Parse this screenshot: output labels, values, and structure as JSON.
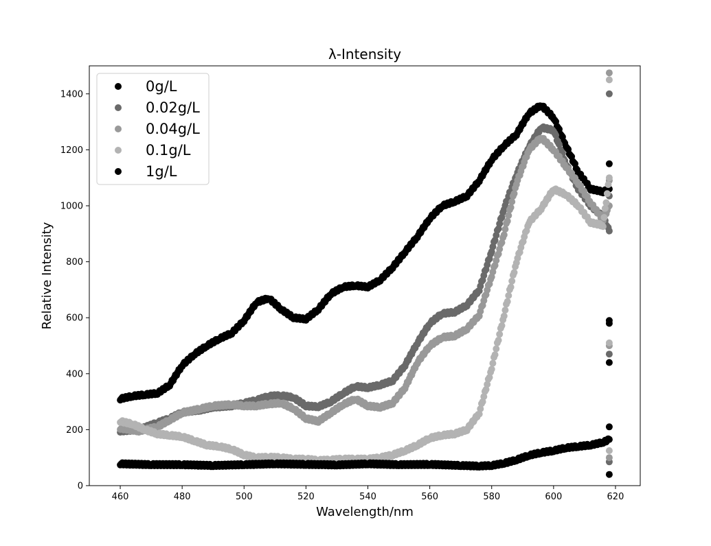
{
  "chart_data": {
    "type": "scatter",
    "title": "λ-Intensity",
    "xlabel": "Wavelength/nm",
    "ylabel": "Relative Intensity",
    "xlim": [
      450,
      628
    ],
    "ylim": [
      0,
      1500
    ],
    "xticks": [
      460,
      480,
      500,
      520,
      540,
      560,
      580,
      600,
      620
    ],
    "yticks": [
      0,
      200,
      400,
      600,
      800,
      1000,
      1200,
      1400
    ],
    "grid": false,
    "legend_position": "top-left",
    "series": [
      {
        "name": "0g/L",
        "color": "#000000",
        "points": [
          [
            460,
            310
          ],
          [
            464,
            320
          ],
          [
            468,
            325
          ],
          [
            472,
            330
          ],
          [
            476,
            360
          ],
          [
            480,
            430
          ],
          [
            484,
            470
          ],
          [
            488,
            500
          ],
          [
            492,
            525
          ],
          [
            496,
            545
          ],
          [
            500,
            590
          ],
          [
            504,
            655
          ],
          [
            508,
            670
          ],
          [
            512,
            630
          ],
          [
            516,
            600
          ],
          [
            520,
            595
          ],
          [
            524,
            630
          ],
          [
            528,
            685
          ],
          [
            532,
            710
          ],
          [
            536,
            715
          ],
          [
            540,
            710
          ],
          [
            544,
            735
          ],
          [
            548,
            780
          ],
          [
            552,
            835
          ],
          [
            556,
            890
          ],
          [
            560,
            955
          ],
          [
            564,
            1000
          ],
          [
            568,
            1015
          ],
          [
            572,
            1035
          ],
          [
            576,
            1090
          ],
          [
            580,
            1165
          ],
          [
            584,
            1215
          ],
          [
            588,
            1255
          ],
          [
            592,
            1330
          ],
          [
            596,
            1360
          ],
          [
            600,
            1315
          ],
          [
            604,
            1215
          ],
          [
            608,
            1120
          ],
          [
            612,
            1060
          ],
          [
            616,
            1050
          ],
          [
            618,
            1060
          ],
          [
            618,
            1150
          ],
          [
            618,
            590
          ],
          [
            618,
            440
          ]
        ]
      },
      {
        "name": "0.02g/L",
        "color": "#6a6a6a",
        "points": [
          [
            460,
            195
          ],
          [
            466,
            200
          ],
          [
            472,
            225
          ],
          [
            476,
            240
          ],
          [
            480,
            262
          ],
          [
            486,
            270
          ],
          [
            490,
            280
          ],
          [
            496,
            285
          ],
          [
            500,
            295
          ],
          [
            504,
            305
          ],
          [
            508,
            320
          ],
          [
            512,
            322
          ],
          [
            516,
            315
          ],
          [
            520,
            285
          ],
          [
            524,
            282
          ],
          [
            528,
            300
          ],
          [
            532,
            330
          ],
          [
            536,
            355
          ],
          [
            540,
            350
          ],
          [
            544,
            360
          ],
          [
            548,
            375
          ],
          [
            552,
            430
          ],
          [
            556,
            510
          ],
          [
            560,
            580
          ],
          [
            564,
            615
          ],
          [
            568,
            620
          ],
          [
            572,
            645
          ],
          [
            576,
            700
          ],
          [
            580,
            840
          ],
          [
            584,
            990
          ],
          [
            588,
            1110
          ],
          [
            592,
            1210
          ],
          [
            596,
            1280
          ],
          [
            600,
            1270
          ],
          [
            604,
            1150
          ],
          [
            608,
            1060
          ],
          [
            612,
            1000
          ],
          [
            616,
            960
          ],
          [
            618,
            910
          ],
          [
            618,
            1400
          ],
          [
            618,
            1035
          ],
          [
            618,
            470
          ],
          [
            618,
            85
          ]
        ]
      },
      {
        "name": "0.04g/L",
        "color": "#999999",
        "points": [
          [
            460,
            205
          ],
          [
            466,
            195
          ],
          [
            472,
            210
          ],
          [
            476,
            235
          ],
          [
            480,
            260
          ],
          [
            486,
            275
          ],
          [
            490,
            285
          ],
          [
            496,
            290
          ],
          [
            500,
            285
          ],
          [
            504,
            285
          ],
          [
            508,
            292
          ],
          [
            512,
            295
          ],
          [
            516,
            275
          ],
          [
            520,
            240
          ],
          [
            524,
            230
          ],
          [
            528,
            260
          ],
          [
            532,
            290
          ],
          [
            536,
            310
          ],
          [
            540,
            285
          ],
          [
            544,
            280
          ],
          [
            548,
            295
          ],
          [
            552,
            350
          ],
          [
            556,
            440
          ],
          [
            560,
            500
          ],
          [
            564,
            530
          ],
          [
            568,
            535
          ],
          [
            572,
            560
          ],
          [
            576,
            610
          ],
          [
            580,
            750
          ],
          [
            584,
            900
          ],
          [
            588,
            1080
          ],
          [
            592,
            1200
          ],
          [
            596,
            1245
          ],
          [
            600,
            1200
          ],
          [
            604,
            1140
          ],
          [
            608,
            1080
          ],
          [
            612,
            1010
          ],
          [
            616,
            950
          ],
          [
            618,
            1000
          ],
          [
            618,
            1475
          ],
          [
            618,
            1090
          ],
          [
            618,
            500
          ],
          [
            618,
            100
          ]
        ]
      },
      {
        "name": "0.1g/L",
        "color": "#b3b3b3",
        "points": [
          [
            460,
            230
          ],
          [
            464,
            220
          ],
          [
            468,
            200
          ],
          [
            472,
            185
          ],
          [
            476,
            180
          ],
          [
            480,
            175
          ],
          [
            484,
            160
          ],
          [
            488,
            145
          ],
          [
            492,
            140
          ],
          [
            496,
            130
          ],
          [
            500,
            110
          ],
          [
            504,
            100
          ],
          [
            508,
            102
          ],
          [
            512,
            100
          ],
          [
            516,
            95
          ],
          [
            520,
            95
          ],
          [
            524,
            90
          ],
          [
            528,
            92
          ],
          [
            532,
            95
          ],
          [
            536,
            95
          ],
          [
            540,
            95
          ],
          [
            544,
            100
          ],
          [
            548,
            110
          ],
          [
            552,
            125
          ],
          [
            556,
            145
          ],
          [
            560,
            170
          ],
          [
            564,
            180
          ],
          [
            568,
            185
          ],
          [
            572,
            200
          ],
          [
            576,
            260
          ],
          [
            580,
            420
          ],
          [
            584,
            610
          ],
          [
            588,
            800
          ],
          [
            592,
            940
          ],
          [
            596,
            990
          ],
          [
            600,
            1060
          ],
          [
            604,
            1040
          ],
          [
            608,
            1000
          ],
          [
            612,
            940
          ],
          [
            616,
            930
          ],
          [
            618,
            1100
          ],
          [
            618,
            1450
          ],
          [
            618,
            510
          ],
          [
            618,
            125
          ]
        ]
      },
      {
        "name": "1g/L",
        "color": "#000000",
        "points": [
          [
            460,
            78
          ],
          [
            470,
            75
          ],
          [
            480,
            75
          ],
          [
            490,
            72
          ],
          [
            500,
            75
          ],
          [
            510,
            78
          ],
          [
            520,
            76
          ],
          [
            530,
            74
          ],
          [
            540,
            78
          ],
          [
            550,
            75
          ],
          [
            560,
            76
          ],
          [
            570,
            72
          ],
          [
            576,
            70
          ],
          [
            580,
            72
          ],
          [
            584,
            80
          ],
          [
            588,
            92
          ],
          [
            592,
            108
          ],
          [
            596,
            118
          ],
          [
            600,
            125
          ],
          [
            604,
            135
          ],
          [
            608,
            140
          ],
          [
            612,
            145
          ],
          [
            616,
            155
          ],
          [
            618,
            165
          ],
          [
            618,
            210
          ],
          [
            618,
            580
          ],
          [
            618,
            40
          ]
        ]
      }
    ]
  }
}
